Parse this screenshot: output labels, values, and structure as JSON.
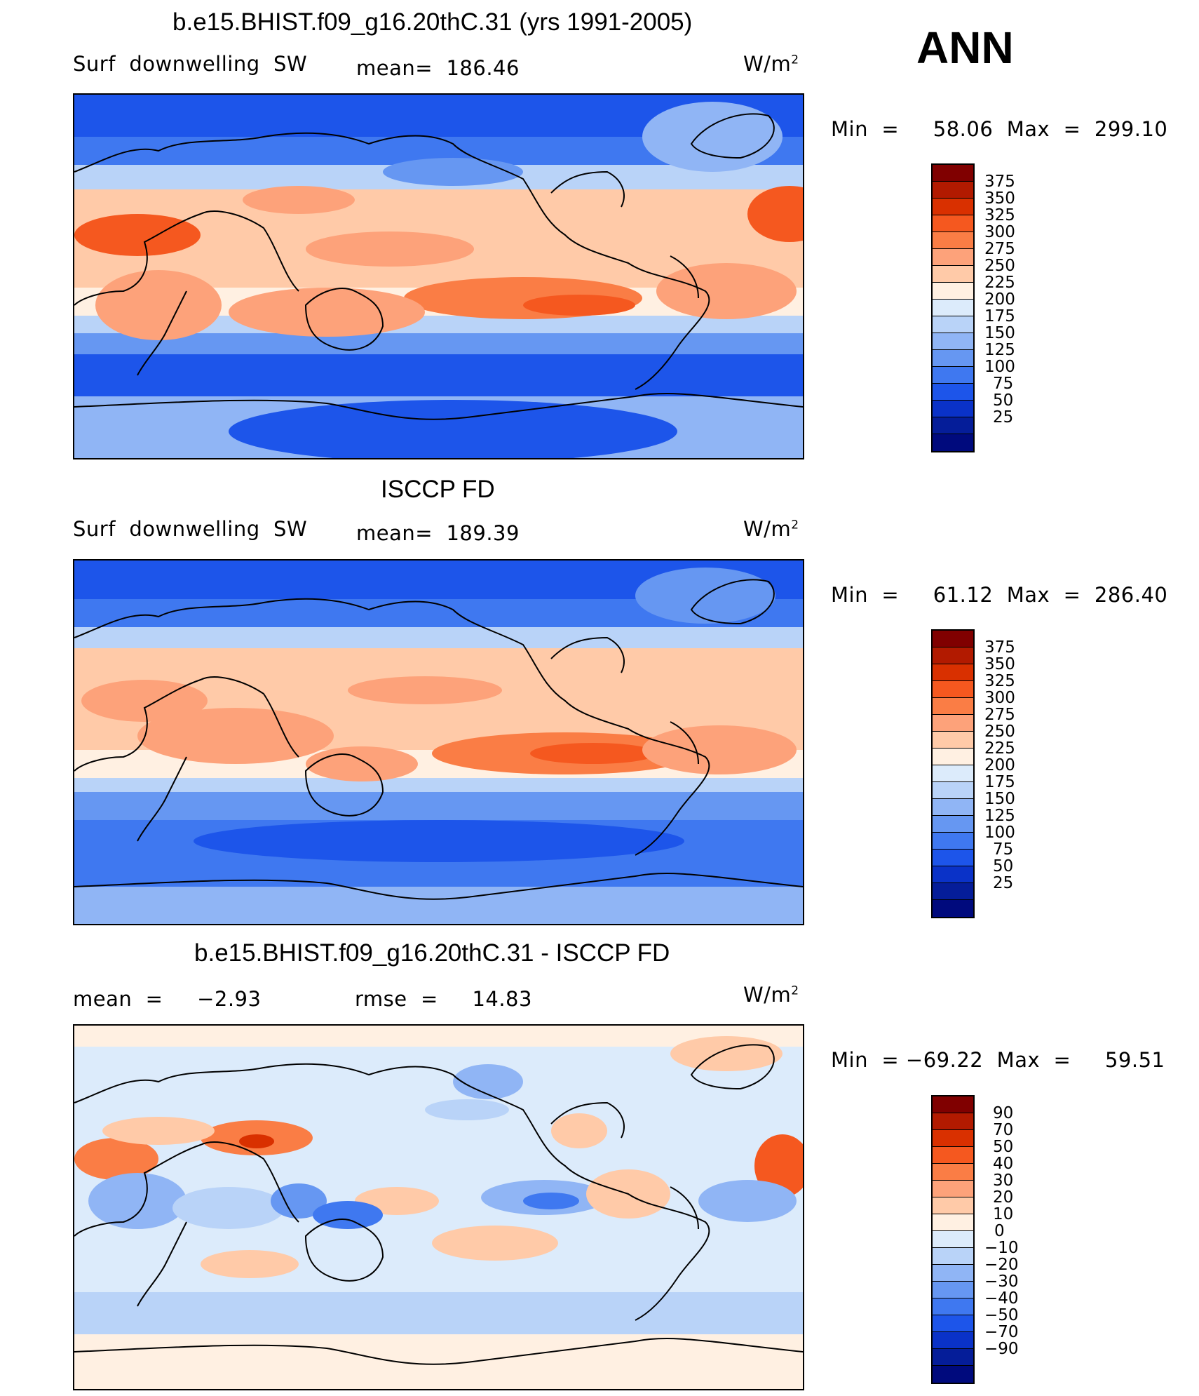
{
  "season": "ANN",
  "units": "W/m",
  "units_sup": "2",
  "panels": [
    {
      "title": "b.e15.BHIST.f09_g16.20thC.31 (yrs 1991-2005)",
      "left_label": "Surf  downwelling  SW",
      "stat_label": "mean=  186.46",
      "minmax": "Min  =     58.06  Max  =  299.10"
    },
    {
      "title": "ISCCP FD",
      "left_label": "Surf  downwelling  SW",
      "stat_label": "mean=  189.39",
      "minmax": "Min  =     61.12  Max  =  286.40"
    },
    {
      "title": "b.e15.BHIST.f09_g16.20thC.31 - ISCCP FD",
      "left_label": "mean  =     −2.93",
      "stat_label": "rmse  =     14.83",
      "minmax": "Min  = −69.22  Max  =     59.51"
    }
  ],
  "chart_data": [
    {
      "type": "heatmap",
      "title": "b.e15.BHIST.f09_g16.20thC.31 (yrs 1991-2005)",
      "variable": "Surf downwelling SW",
      "units": "W/m2",
      "mean": 186.46,
      "min": 58.06,
      "max": 299.1,
      "contour_levels": [
        "375",
        "350",
        "325",
        "300",
        "275",
        "250",
        "225",
        "200",
        "175",
        "150",
        "125",
        "100",
        "75",
        "50",
        "25"
      ],
      "colors": [
        "#800000",
        "#b21a00",
        "#d93000",
        "#f5581f",
        "#fa7d45",
        "#fda27a",
        "#ffcaa8",
        "#fff0e2",
        "#dcebfb",
        "#b9d3f8",
        "#90b5f5",
        "#6697f2",
        "#3f78f0",
        "#1d55ea",
        "#0a32c8",
        "#051d99",
        "#000a7d"
      ]
    },
    {
      "type": "heatmap",
      "title": "ISCCP FD",
      "variable": "Surf downwelling SW",
      "units": "W/m2",
      "mean": 189.39,
      "min": 61.12,
      "max": 286.4,
      "contour_levels": [
        "375",
        "350",
        "325",
        "300",
        "275",
        "250",
        "225",
        "200",
        "175",
        "150",
        "125",
        "100",
        "75",
        "50",
        "25"
      ],
      "colors": [
        "#800000",
        "#b21a00",
        "#d93000",
        "#f5581f",
        "#fa7d45",
        "#fda27a",
        "#ffcaa8",
        "#fff0e2",
        "#dcebfb",
        "#b9d3f8",
        "#90b5f5",
        "#6697f2",
        "#3f78f0",
        "#1d55ea",
        "#0a32c8",
        "#051d99",
        "#000a7d"
      ]
    },
    {
      "type": "heatmap",
      "title": "b.e15.BHIST.f09_g16.20thC.31 - ISCCP FD",
      "units": "W/m2",
      "mean": -2.93,
      "rmse": 14.83,
      "min": -69.22,
      "max": 59.51,
      "contour_levels": [
        "90",
        "70",
        "50",
        "40",
        "30",
        "20",
        "10",
        "0",
        "−10",
        "−20",
        "−30",
        "−40",
        "−50",
        "−70",
        "−90"
      ],
      "colors": [
        "#800000",
        "#b21a00",
        "#d93000",
        "#f5581f",
        "#fa7d45",
        "#fda27a",
        "#ffcaa8",
        "#fff0e2",
        "#dcebfb",
        "#b9d3f8",
        "#90b5f5",
        "#6697f2",
        "#3f78f0",
        "#1d55ea",
        "#0a32c8",
        "#051d99",
        "#000a7d"
      ]
    }
  ]
}
